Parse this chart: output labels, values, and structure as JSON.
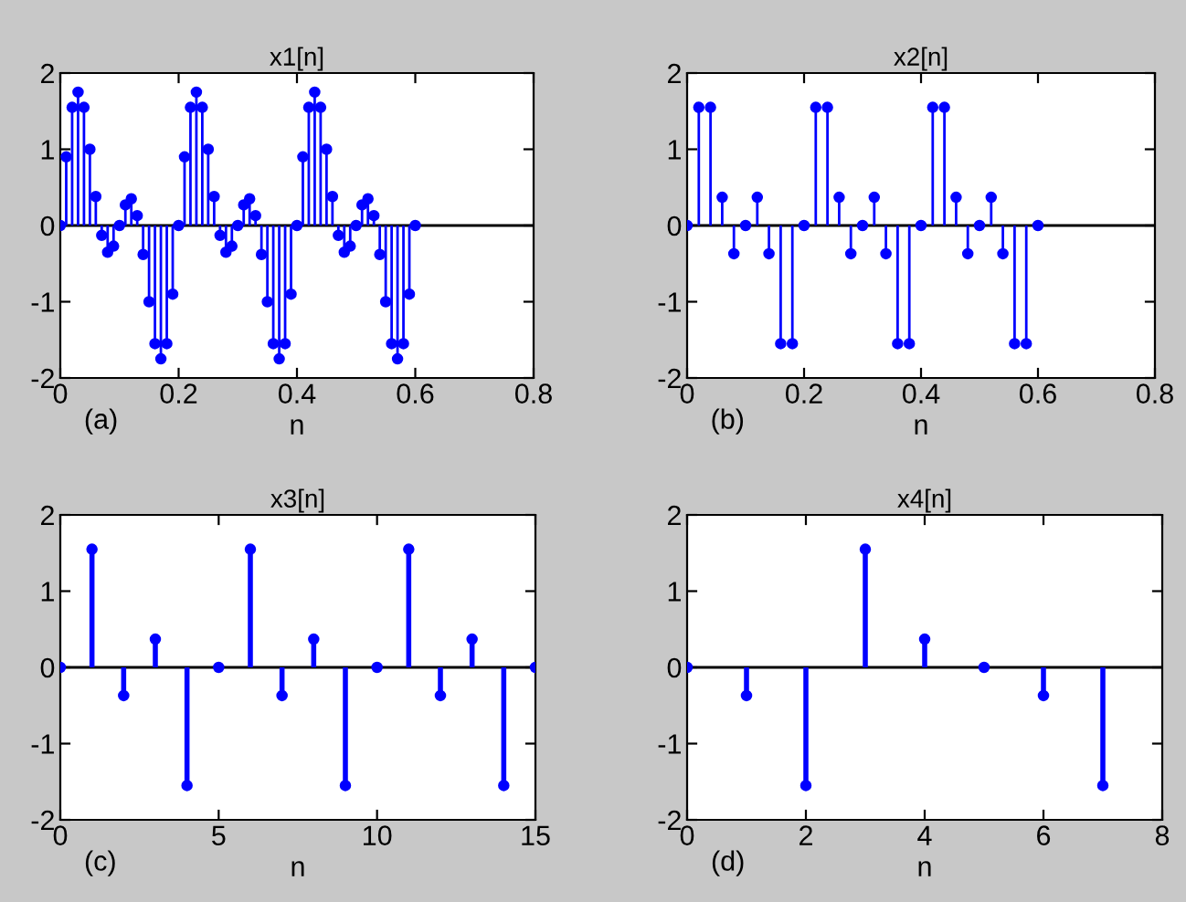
{
  "chart_data": [
    {
      "type": "lollipop",
      "title": "x1[n]",
      "xlabel": "n",
      "color": "#0000ff",
      "marker": "circle",
      "ref_lines": [
        {
          "axis": "y",
          "value": 0,
          "color": "#000000"
        }
      ],
      "xlim": [
        0,
        0.8
      ],
      "ylim": [
        -2,
        2
      ],
      "xticks": [
        0,
        0.2,
        0.4,
        0.6,
        0.8
      ],
      "yticks": [
        -2,
        -1,
        0,
        1,
        2
      ],
      "annotations": [
        "(a)"
      ],
      "x": [
        0,
        0.01,
        0.02,
        0.03,
        0.04,
        0.05,
        0.06,
        0.07,
        0.08,
        0.09,
        0.1,
        0.11,
        0.12,
        0.13,
        0.14,
        0.15,
        0.16,
        0.17,
        0.18,
        0.19,
        0.2,
        0.21,
        0.22,
        0.23,
        0.24,
        0.25,
        0.26,
        0.27,
        0.28,
        0.29,
        0.3,
        0.31,
        0.32,
        0.33,
        0.34,
        0.35,
        0.36,
        0.37,
        0.38,
        0.39,
        0.4,
        0.41,
        0.42,
        0.43,
        0.44,
        0.45,
        0.46,
        0.47,
        0.48,
        0.49,
        0.5,
        0.51,
        0.52,
        0.53,
        0.54,
        0.55,
        0.56,
        0.57,
        0.58,
        0.59,
        0.6
      ],
      "values": [
        0,
        0.9,
        1.55,
        1.75,
        1.55,
        1.0,
        0.38,
        -0.13,
        -0.35,
        -0.27,
        0,
        0.27,
        0.35,
        0.13,
        -0.38,
        -1.0,
        -1.55,
        -1.75,
        -1.55,
        -0.9,
        0,
        0.9,
        1.55,
        1.75,
        1.55,
        1.0,
        0.38,
        -0.13,
        -0.35,
        -0.27,
        0,
        0.27,
        0.35,
        0.13,
        -0.38,
        -1.0,
        -1.55,
        -1.75,
        -1.55,
        -0.9,
        0,
        0.9,
        1.55,
        1.75,
        1.55,
        1.0,
        0.38,
        -0.13,
        -0.35,
        -0.27,
        0,
        0.27,
        0.35,
        0.13,
        -0.38,
        -1.0,
        -1.55,
        -1.75,
        -1.55,
        -0.9,
        0
      ]
    },
    {
      "type": "lollipop",
      "title": "x2[n]",
      "xlabel": "n",
      "color": "#0000ff",
      "marker": "circle",
      "ref_lines": [
        {
          "axis": "y",
          "value": 0,
          "color": "#000000"
        }
      ],
      "xlim": [
        0,
        0.8
      ],
      "ylim": [
        -2,
        2
      ],
      "xticks": [
        0,
        0.2,
        0.4,
        0.6,
        0.8
      ],
      "yticks": [
        -2,
        -1,
        0,
        1,
        2
      ],
      "annotations": [
        "(b)"
      ],
      "x": [
        0,
        0.02,
        0.04,
        0.06,
        0.08,
        0.1,
        0.12,
        0.14,
        0.16,
        0.18,
        0.2,
        0.22,
        0.24,
        0.26,
        0.28,
        0.3,
        0.32,
        0.34,
        0.36,
        0.38,
        0.4,
        0.42,
        0.44,
        0.46,
        0.48,
        0.5,
        0.52,
        0.54,
        0.56,
        0.58,
        0.6
      ],
      "values": [
        0,
        1.55,
        1.55,
        0.37,
        -0.37,
        0,
        0.37,
        -0.37,
        -1.55,
        -1.55,
        0,
        1.55,
        1.55,
        0.37,
        -0.37,
        0,
        0.37,
        -0.37,
        -1.55,
        -1.55,
        0,
        1.55,
        1.55,
        0.37,
        -0.37,
        0,
        0.37,
        -0.37,
        -1.55,
        -1.55,
        0
      ]
    },
    {
      "type": "lollipop",
      "title": "x3[n]",
      "xlabel": "n",
      "color": "#0000ff",
      "marker": "circle",
      "ref_lines": [
        {
          "axis": "y",
          "value": 0,
          "color": "#000000"
        }
      ],
      "xlim": [
        0,
        15
      ],
      "ylim": [
        -2,
        2
      ],
      "xticks": [
        0,
        5,
        10,
        15
      ],
      "yticks": [
        -2,
        -1,
        0,
        1,
        2
      ],
      "annotations": [
        "(c)"
      ],
      "x": [
        0,
        1,
        2,
        3,
        4,
        5,
        6,
        7,
        8,
        9,
        10,
        11,
        12,
        13,
        14,
        15
      ],
      "values": [
        0,
        1.55,
        -0.37,
        0.37,
        -1.55,
        0,
        1.55,
        -0.37,
        0.37,
        -1.55,
        0,
        1.55,
        -0.37,
        0.37,
        -1.55,
        0
      ]
    },
    {
      "type": "lollipop",
      "title": "x4[n]",
      "xlabel": "n",
      "color": "#0000ff",
      "marker": "circle",
      "ref_lines": [
        {
          "axis": "y",
          "value": 0,
          "color": "#000000"
        }
      ],
      "xlim": [
        0,
        8
      ],
      "ylim": [
        -2,
        2
      ],
      "xticks": [
        0,
        2,
        4,
        6,
        8
      ],
      "yticks": [
        -2,
        -1,
        0,
        1,
        2
      ],
      "annotations": [
        "(d)"
      ],
      "x": [
        0,
        1,
        2,
        3,
        4,
        5,
        6,
        7
      ],
      "values": [
        0,
        -0.37,
        -1.55,
        1.55,
        0.37,
        0,
        -0.37,
        -1.55
      ]
    }
  ]
}
